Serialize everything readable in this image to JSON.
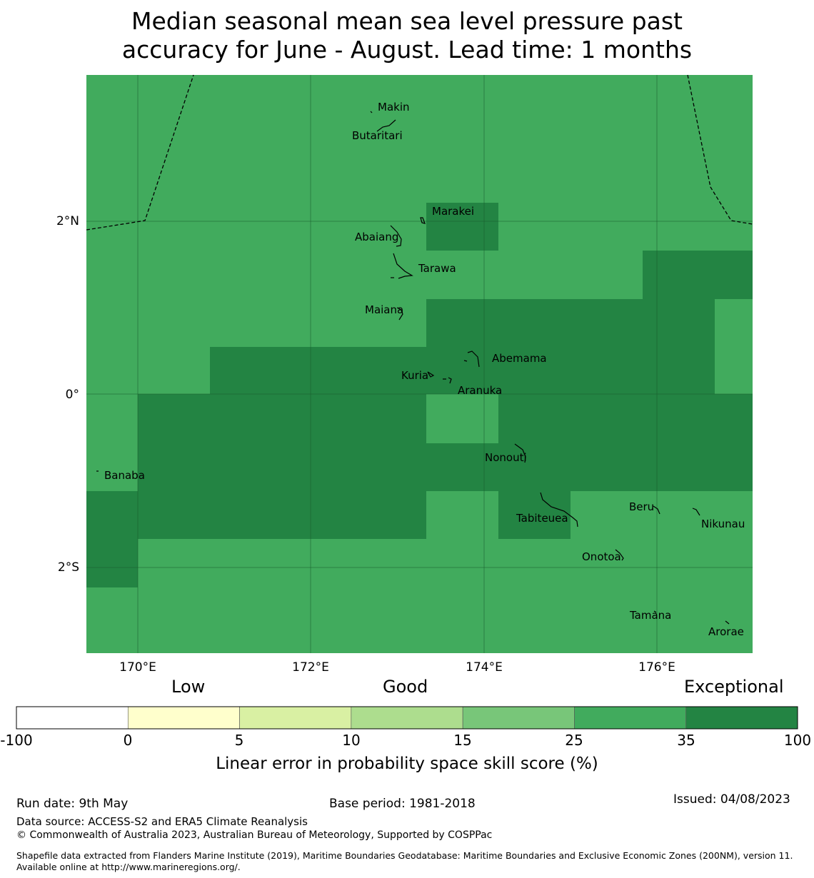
{
  "title": {
    "line1": "Median seasonal mean sea level pressure past",
    "line2": "accuracy for June - August. Lead time: 1 months"
  },
  "map": {
    "lon_ticks": [
      "170°E",
      "172°E",
      "174°E",
      "176°E"
    ],
    "lat_ticks": [
      "2°N",
      "0°",
      "2°S"
    ],
    "places": [
      {
        "name": "Makin"
      },
      {
        "name": "Butaritari"
      },
      {
        "name": "Marakei"
      },
      {
        "name": "Abaiang"
      },
      {
        "name": "Tarawa"
      },
      {
        "name": "Maiana"
      },
      {
        "name": "Abemama"
      },
      {
        "name": "Kuria"
      },
      {
        "name": "Aranuka"
      },
      {
        "name": "Nonouti"
      },
      {
        "name": "Banaba"
      },
      {
        "name": "Beru"
      },
      {
        "name": "Tabiteuea"
      },
      {
        "name": "Nikunau"
      },
      {
        "name": "Onotoa"
      },
      {
        "name": "Tamana"
      },
      {
        "name": "Arorae"
      }
    ],
    "colors": {
      "cat_25_35": "#41ab5d",
      "cat_35_100": "#238443"
    }
  },
  "colorbar": {
    "category_labels": {
      "low": "Low",
      "good": "Good",
      "exceptional": "Exceptional"
    },
    "bounds": [
      "-100",
      "0",
      "5",
      "10",
      "15",
      "25",
      "35",
      "100"
    ],
    "colors": [
      "#ffffff",
      "#ffffcc",
      "#d9f0a3",
      "#addd8e",
      "#78c679",
      "#41ab5d",
      "#238443"
    ],
    "label": "Linear error in probability space skill score (%)"
  },
  "footer": {
    "run_date": "Run date: 9th May",
    "base_period": "Base period: 1981-2018",
    "issued": "Issued: 04/08/2023",
    "data_source": "Data source: ACCESS-S2 and ERA5 Climate Reanalysis",
    "copyright": "© Commonwealth of Australia 2023, Australian Bureau of Meteorology, Supported by COSPPac",
    "shapefile": "Shapefile data extracted from Flanders Marine Institute (2019), Maritime Boundaries Geodatabase: Maritime Boundaries and Exclusive Economic Zones (200NM), version 11. Available online at http://www.marineregions.org/."
  }
}
